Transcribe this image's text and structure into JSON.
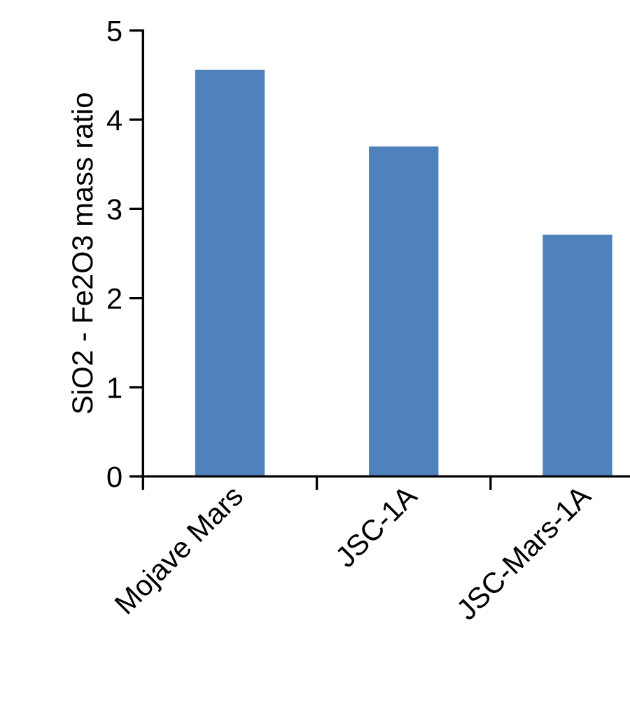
{
  "chart_data": {
    "type": "bar",
    "ylabel": "SiO2 - Fe2O3 mass ratio",
    "categories": [
      "Mojave Mars",
      "JSC-1A",
      "JSC-Mars-1A"
    ],
    "values": [
      4.56,
      3.7,
      2.71
    ],
    "color": "#4f81bd",
    "ylim": [
      0,
      5
    ],
    "yticks": [
      0,
      1,
      2,
      3,
      4,
      5
    ],
    "grid": false,
    "legend": false
  }
}
